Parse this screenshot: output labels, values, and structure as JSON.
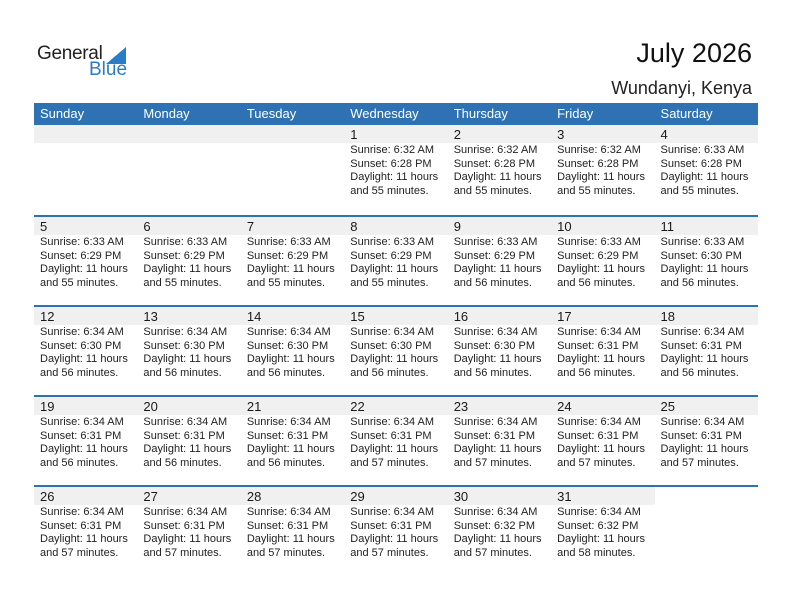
{
  "logo": {
    "general": "General",
    "blue": "Blue"
  },
  "header": {
    "title": "July 2026",
    "location": "Wundanyi, Kenya"
  },
  "colors": {
    "accent": "#2e72b4",
    "logo_blue": "#2a7cc7",
    "date_band": "#f0f0f0"
  },
  "weekdays": [
    "Sunday",
    "Monday",
    "Tuesday",
    "Wednesday",
    "Thursday",
    "Friday",
    "Saturday"
  ],
  "weeks": [
    [
      null,
      null,
      null,
      {
        "day": "1",
        "sunrise": "Sunrise: 6:32 AM",
        "sunset": "Sunset: 6:28 PM",
        "daylight1": "Daylight: 11 hours",
        "daylight2": "and 55 minutes."
      },
      {
        "day": "2",
        "sunrise": "Sunrise: 6:32 AM",
        "sunset": "Sunset: 6:28 PM",
        "daylight1": "Daylight: 11 hours",
        "daylight2": "and 55 minutes."
      },
      {
        "day": "3",
        "sunrise": "Sunrise: 6:32 AM",
        "sunset": "Sunset: 6:28 PM",
        "daylight1": "Daylight: 11 hours",
        "daylight2": "and 55 minutes."
      },
      {
        "day": "4",
        "sunrise": "Sunrise: 6:33 AM",
        "sunset": "Sunset: 6:28 PM",
        "daylight1": "Daylight: 11 hours",
        "daylight2": "and 55 minutes."
      }
    ],
    [
      {
        "day": "5",
        "sunrise": "Sunrise: 6:33 AM",
        "sunset": "Sunset: 6:29 PM",
        "daylight1": "Daylight: 11 hours",
        "daylight2": "and 55 minutes."
      },
      {
        "day": "6",
        "sunrise": "Sunrise: 6:33 AM",
        "sunset": "Sunset: 6:29 PM",
        "daylight1": "Daylight: 11 hours",
        "daylight2": "and 55 minutes."
      },
      {
        "day": "7",
        "sunrise": "Sunrise: 6:33 AM",
        "sunset": "Sunset: 6:29 PM",
        "daylight1": "Daylight: 11 hours",
        "daylight2": "and 55 minutes."
      },
      {
        "day": "8",
        "sunrise": "Sunrise: 6:33 AM",
        "sunset": "Sunset: 6:29 PM",
        "daylight1": "Daylight: 11 hours",
        "daylight2": "and 55 minutes."
      },
      {
        "day": "9",
        "sunrise": "Sunrise: 6:33 AM",
        "sunset": "Sunset: 6:29 PM",
        "daylight1": "Daylight: 11 hours",
        "daylight2": "and 56 minutes."
      },
      {
        "day": "10",
        "sunrise": "Sunrise: 6:33 AM",
        "sunset": "Sunset: 6:29 PM",
        "daylight1": "Daylight: 11 hours",
        "daylight2": "and 56 minutes."
      },
      {
        "day": "11",
        "sunrise": "Sunrise: 6:33 AM",
        "sunset": "Sunset: 6:30 PM",
        "daylight1": "Daylight: 11 hours",
        "daylight2": "and 56 minutes."
      }
    ],
    [
      {
        "day": "12",
        "sunrise": "Sunrise: 6:34 AM",
        "sunset": "Sunset: 6:30 PM",
        "daylight1": "Daylight: 11 hours",
        "daylight2": "and 56 minutes."
      },
      {
        "day": "13",
        "sunrise": "Sunrise: 6:34 AM",
        "sunset": "Sunset: 6:30 PM",
        "daylight1": "Daylight: 11 hours",
        "daylight2": "and 56 minutes."
      },
      {
        "day": "14",
        "sunrise": "Sunrise: 6:34 AM",
        "sunset": "Sunset: 6:30 PM",
        "daylight1": "Daylight: 11 hours",
        "daylight2": "and 56 minutes."
      },
      {
        "day": "15",
        "sunrise": "Sunrise: 6:34 AM",
        "sunset": "Sunset: 6:30 PM",
        "daylight1": "Daylight: 11 hours",
        "daylight2": "and 56 minutes."
      },
      {
        "day": "16",
        "sunrise": "Sunrise: 6:34 AM",
        "sunset": "Sunset: 6:30 PM",
        "daylight1": "Daylight: 11 hours",
        "daylight2": "and 56 minutes."
      },
      {
        "day": "17",
        "sunrise": "Sunrise: 6:34 AM",
        "sunset": "Sunset: 6:31 PM",
        "daylight1": "Daylight: 11 hours",
        "daylight2": "and 56 minutes."
      },
      {
        "day": "18",
        "sunrise": "Sunrise: 6:34 AM",
        "sunset": "Sunset: 6:31 PM",
        "daylight1": "Daylight: 11 hours",
        "daylight2": "and 56 minutes."
      }
    ],
    [
      {
        "day": "19",
        "sunrise": "Sunrise: 6:34 AM",
        "sunset": "Sunset: 6:31 PM",
        "daylight1": "Daylight: 11 hours",
        "daylight2": "and 56 minutes."
      },
      {
        "day": "20",
        "sunrise": "Sunrise: 6:34 AM",
        "sunset": "Sunset: 6:31 PM",
        "daylight1": "Daylight: 11 hours",
        "daylight2": "and 56 minutes."
      },
      {
        "day": "21",
        "sunrise": "Sunrise: 6:34 AM",
        "sunset": "Sunset: 6:31 PM",
        "daylight1": "Daylight: 11 hours",
        "daylight2": "and 56 minutes."
      },
      {
        "day": "22",
        "sunrise": "Sunrise: 6:34 AM",
        "sunset": "Sunset: 6:31 PM",
        "daylight1": "Daylight: 11 hours",
        "daylight2": "and 57 minutes."
      },
      {
        "day": "23",
        "sunrise": "Sunrise: 6:34 AM",
        "sunset": "Sunset: 6:31 PM",
        "daylight1": "Daylight: 11 hours",
        "daylight2": "and 57 minutes."
      },
      {
        "day": "24",
        "sunrise": "Sunrise: 6:34 AM",
        "sunset": "Sunset: 6:31 PM",
        "daylight1": "Daylight: 11 hours",
        "daylight2": "and 57 minutes."
      },
      {
        "day": "25",
        "sunrise": "Sunrise: 6:34 AM",
        "sunset": "Sunset: 6:31 PM",
        "daylight1": "Daylight: 11 hours",
        "daylight2": "and 57 minutes."
      }
    ],
    [
      {
        "day": "26",
        "sunrise": "Sunrise: 6:34 AM",
        "sunset": "Sunset: 6:31 PM",
        "daylight1": "Daylight: 11 hours",
        "daylight2": "and 57 minutes."
      },
      {
        "day": "27",
        "sunrise": "Sunrise: 6:34 AM",
        "sunset": "Sunset: 6:31 PM",
        "daylight1": "Daylight: 11 hours",
        "daylight2": "and 57 minutes."
      },
      {
        "day": "28",
        "sunrise": "Sunrise: 6:34 AM",
        "sunset": "Sunset: 6:31 PM",
        "daylight1": "Daylight: 11 hours",
        "daylight2": "and 57 minutes."
      },
      {
        "day": "29",
        "sunrise": "Sunrise: 6:34 AM",
        "sunset": "Sunset: 6:31 PM",
        "daylight1": "Daylight: 11 hours",
        "daylight2": "and 57 minutes."
      },
      {
        "day": "30",
        "sunrise": "Sunrise: 6:34 AM",
        "sunset": "Sunset: 6:32 PM",
        "daylight1": "Daylight: 11 hours",
        "daylight2": "and 57 minutes."
      },
      {
        "day": "31",
        "sunrise": "Sunrise: 6:34 AM",
        "sunset": "Sunset: 6:32 PM",
        "daylight1": "Daylight: 11 hours",
        "daylight2": "and 58 minutes."
      },
      null
    ]
  ]
}
